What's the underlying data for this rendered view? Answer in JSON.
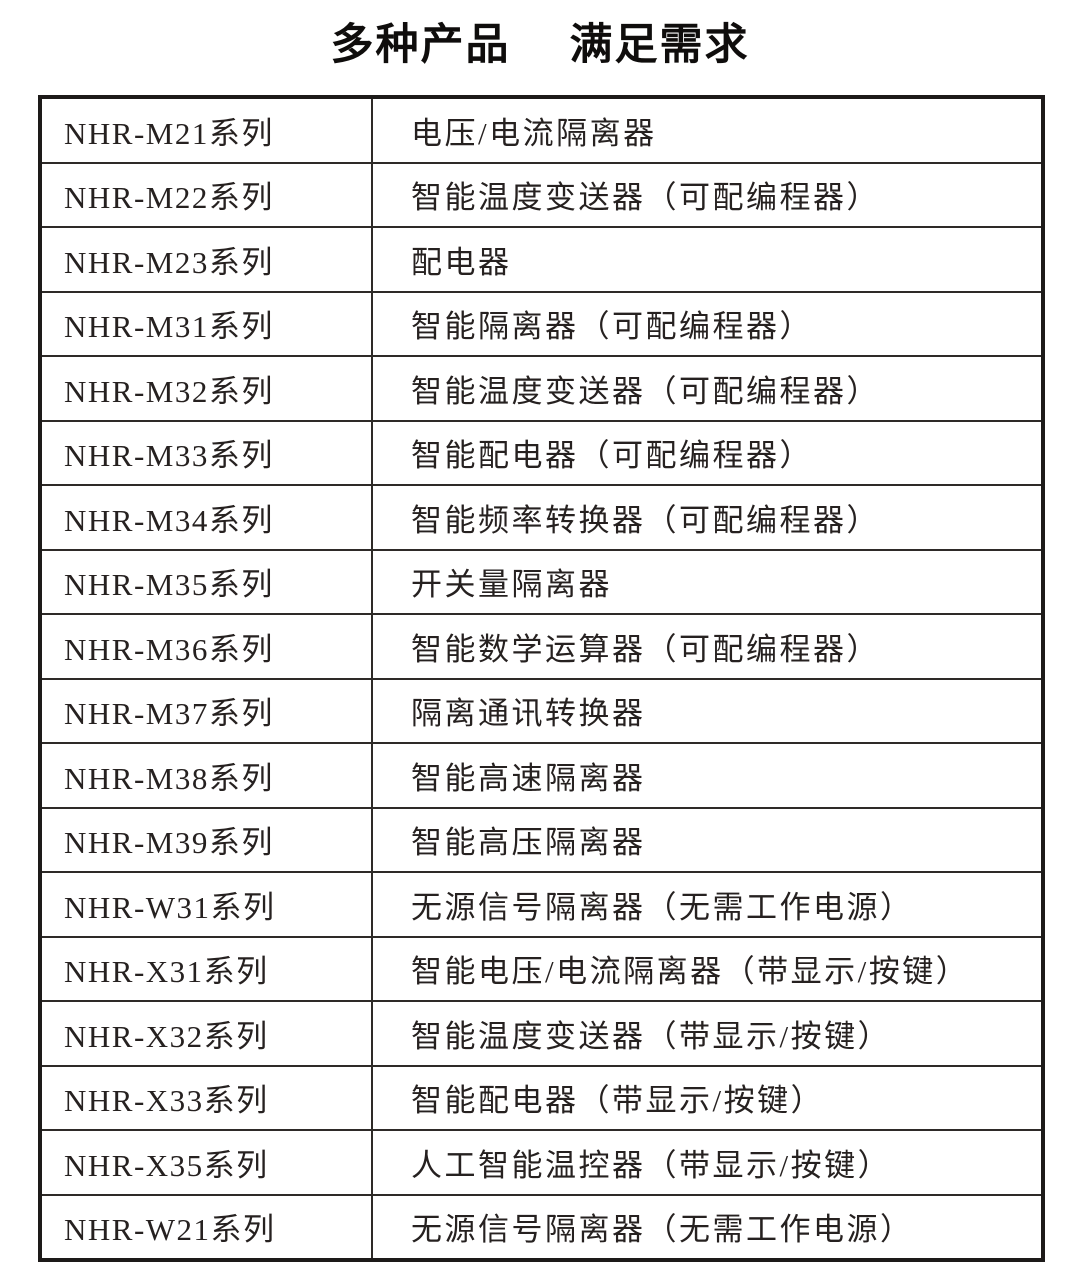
{
  "page": {
    "title": "多种产品　 满足需求"
  },
  "table": {
    "rows": [
      {
        "series": "NHR-M21系列",
        "desc": "电压/电流隔离器"
      },
      {
        "series": "NHR-M22系列",
        "desc": "智能温度变送器（可配编程器）"
      },
      {
        "series": "NHR-M23系列",
        "desc": "配电器"
      },
      {
        "series": "NHR-M31系列",
        "desc": "智能隔离器（可配编程器）"
      },
      {
        "series": "NHR-M32系列",
        "desc": "智能温度变送器（可配编程器）"
      },
      {
        "series": "NHR-M33系列",
        "desc": "智能配电器（可配编程器）"
      },
      {
        "series": "NHR-M34系列",
        "desc": "智能频率转换器（可配编程器）"
      },
      {
        "series": "NHR-M35系列",
        "desc": "开关量隔离器"
      },
      {
        "series": "NHR-M36系列",
        "desc": "智能数学运算器（可配编程器）"
      },
      {
        "series": "NHR-M37系列",
        "desc": "隔离通讯转换器"
      },
      {
        "series": "NHR-M38系列",
        "desc": "智能高速隔离器"
      },
      {
        "series": "NHR-M39系列",
        "desc": "智能高压隔离器"
      },
      {
        "series": "NHR-W31系列",
        "desc": "无源信号隔离器（无需工作电源）"
      },
      {
        "series": "NHR-X31系列",
        "desc": "智能电压/电流隔离器（带显示/按键）"
      },
      {
        "series": "NHR-X32系列",
        "desc": "智能温度变送器（带显示/按键）"
      },
      {
        "series": "NHR-X33系列",
        "desc": "智能配电器（带显示/按键）"
      },
      {
        "series": "NHR-X35系列",
        "desc": "人工智能温控器（带显示/按键）"
      },
      {
        "series": "NHR-W21系列",
        "desc": "无源信号隔离器（无需工作电源）"
      }
    ]
  }
}
